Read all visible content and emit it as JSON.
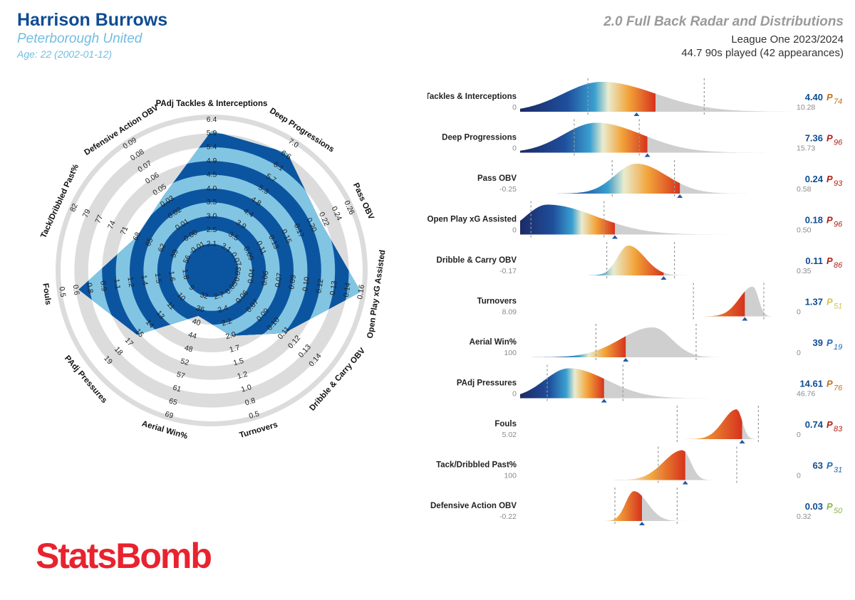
{
  "header": {
    "player_name": "Harrison Burrows",
    "team": "Peterborough United",
    "age_line": "Age: 22 (2002-01-12)",
    "title": "2.0 Full Back Radar and Distributions",
    "league": "League One 2023/2024",
    "played": "44.7 90s played (42 appearances)"
  },
  "brand": {
    "logo_text": "StatsBomb"
  },
  "colors": {
    "radar_dark": "#0b55a0",
    "radar_light": "#82c5e3",
    "ring_grey": "#dcdcdc",
    "value_blue": "#0e4c92",
    "logo_red": "#e8232e"
  },
  "chart_data": [
    {
      "type": "radar",
      "axes": [
        {
          "label": "PAdj Tackles & Interceptions",
          "ticks": [
            "2.1",
            "2.5",
            "3.0",
            "3.5",
            "4.0",
            "4.5",
            "4.9",
            "5.4",
            "5.9",
            "6.4"
          ],
          "value": 4.4
        },
        {
          "label": "Deep Progressions",
          "ticks": [
            "3.1",
            "3.5",
            "3.9",
            "4.4",
            "4.8",
            "5.3",
            "5.7",
            "6.1",
            "6.6",
            "7.0"
          ],
          "value": 7.36
        },
        {
          "label": "Pass OBV",
          "ticks": [
            "0.07",
            "0.09",
            "0.11",
            "0.13",
            "0.15",
            "0.17",
            "0.20",
            "0.22",
            "0.24",
            "0.26"
          ],
          "value": 0.24
        },
        {
          "label": "Open Play xG Assisted",
          "ticks": [
            "0.03",
            "0.04",
            "0.06",
            "0.07",
            "0.09",
            "0.10",
            "0.12",
            "0.13",
            "0.14",
            "0.16"
          ],
          "value": 0.18
        },
        {
          "label": "Dribble & Carry OBV",
          "ticks": [
            "0.05",
            "0.06",
            "0.07",
            "0.09",
            "0.10",
            "0.11",
            "0.12",
            "0.13",
            "0.14"
          ],
          "value": 0.11
        },
        {
          "label": "Turnovers",
          "ticks": [
            "2.7",
            "2.4",
            "2.2",
            "2.0",
            "1.7",
            "1.5",
            "1.2",
            "1.0",
            "0.8",
            "0.5"
          ],
          "value": 1.37
        },
        {
          "label": "Aerial Win%",
          "ticks": [
            "32",
            "36",
            "40",
            "44",
            "48",
            "52",
            "57",
            "61",
            "65",
            "69"
          ],
          "value": 39
        },
        {
          "label": "PAdj Pressures",
          "ticks": [
            "9",
            "10",
            "11",
            "13",
            "14",
            "15",
            "17",
            "18",
            "19"
          ],
          "value": 14.61
        },
        {
          "label": "Fouls",
          "ticks": [
            "1.8",
            "1.6",
            "1.5",
            "1.4",
            "1.2",
            "1.1",
            "0.9",
            "0.8",
            "0.6",
            "0.5"
          ],
          "value": 0.74
        },
        {
          "label": "Tack/Dribbled Past%",
          "ticks": [
            "56",
            "59",
            "62",
            "65",
            "68",
            "71",
            "74",
            "77",
            "79",
            "82"
          ],
          "value": 63
        },
        {
          "label": "Defensive Action OBV",
          "ticks": [
            "-0.01",
            "-0.00",
            "0.01",
            "0.02",
            "0.03",
            "0.05",
            "0.06",
            "0.07",
            "0.08",
            "0.09"
          ],
          "value": 0.03
        }
      ],
      "radii_fraction": [
        0.92,
        0.92,
        0.77,
        1.0,
        0.6,
        0.4,
        0.25,
        0.62,
        0.88,
        0.5,
        0.55
      ]
    },
    {
      "type": "distribution",
      "rows": [
        {
          "label": "PAdj Tackles & Interceptions",
          "min": "0",
          "max": "10.28",
          "value": "4.40",
          "percentile": "74",
          "pct_color": "#c0701b",
          "peak": 0.3,
          "spread": 0.14,
          "skew": 0.06,
          "marker": 0.43,
          "gradient_end": 0.5,
          "dashes": [
            0.25,
            0.68
          ]
        },
        {
          "label": "Deep Progressions",
          "min": "0",
          "max": "15.73",
          "value": "7.36",
          "percentile": "96",
          "pct_color": "#b31d12",
          "peak": 0.28,
          "spread": 0.12,
          "skew": 0.05,
          "marker": 0.47,
          "gradient_end": 0.47,
          "dashes": [
            0.2,
            0.44
          ]
        },
        {
          "label": "Pass OBV",
          "min": "-0.25",
          "max": "0.58",
          "value": "0.24",
          "percentile": "93",
          "pct_color": "#b31d12",
          "peak": 0.43,
          "spread": 0.08,
          "skew": 0.03,
          "marker": 0.59,
          "gradient_end": 0.59,
          "dashes": [
            0.34,
            0.57
          ]
        },
        {
          "label": "Open Play xG Assisted",
          "min": "0",
          "max": "0.50",
          "value": "0.18",
          "percentile": "96",
          "pct_color": "#b31d12",
          "peak": 0.1,
          "spread": 0.08,
          "skew": 0.1,
          "marker": 0.35,
          "gradient_end": 0.35,
          "dashes": [
            0.04,
            0.31
          ]
        },
        {
          "label": "Dribble & Carry OBV",
          "min": "-0.17",
          "max": "0.35",
          "value": "0.11",
          "percentile": "86",
          "pct_color": "#b31d12",
          "peak": 0.4,
          "spread": 0.04,
          "skew": 0.02,
          "marker": 0.53,
          "gradient_end": 0.53,
          "dashes": [
            0.32,
            0.57
          ]
        },
        {
          "label": "Turnovers",
          "min": "8.09",
          "max": "0",
          "value": "1.37",
          "percentile": "51",
          "pct_color": "#d3c34a",
          "peak": 0.86,
          "spread": 0.05,
          "skew": -0.08,
          "marker": 0.83,
          "gradient_end": 0.83,
          "dashes": [
            0.64,
            0.9
          ]
        },
        {
          "label": "Aerial Win%",
          "min": "100",
          "max": "0",
          "value": "39",
          "percentile": "19",
          "pct_color": "#1d6ab3",
          "peak": 0.49,
          "spread": 0.12,
          "skew": -0.05,
          "marker": 0.39,
          "gradient_end": 0.39,
          "dashes": [
            0.28,
            0.65
          ]
        },
        {
          "label": "PAdj Pressures",
          "min": "0",
          "max": "46.76",
          "value": "14.61",
          "percentile": "76",
          "pct_color": "#c0701b",
          "peak": 0.18,
          "spread": 0.09,
          "skew": 0.05,
          "marker": 0.31,
          "gradient_end": 0.31,
          "dashes": [
            0.1,
            0.38
          ]
        },
        {
          "label": "Fouls",
          "min": "5.02",
          "max": "0",
          "value": "0.74",
          "percentile": "83",
          "pct_color": "#b31d12",
          "peak": 0.8,
          "spread": 0.05,
          "skew": -0.07,
          "marker": 0.82,
          "gradient_end": 0.82,
          "dashes": [
            0.58,
            0.88
          ]
        },
        {
          "label": "Tack/Dribbled Past%",
          "min": "100",
          "max": "0",
          "value": "63",
          "percentile": "31",
          "pct_color": "#1d6ab3",
          "peak": 0.6,
          "spread": 0.07,
          "skew": -0.04,
          "marker": 0.61,
          "gradient_end": 0.61,
          "dashes": [
            0.51,
            0.8
          ]
        },
        {
          "label": "Defensive Action OBV",
          "min": "-0.22",
          "max": "0.32",
          "value": "0.03",
          "percentile": "50",
          "pct_color": "#8db54a",
          "peak": 0.42,
          "spread": 0.03,
          "skew": 0.02,
          "marker": 0.45,
          "gradient_end": 0.45,
          "dashes": [
            0.35,
            0.58
          ]
        }
      ]
    }
  ]
}
